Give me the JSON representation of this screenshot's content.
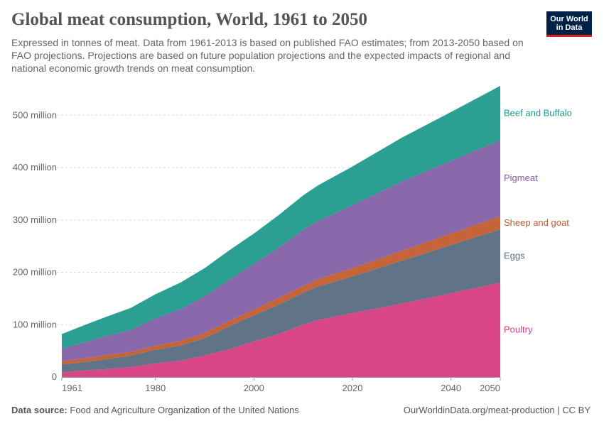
{
  "header": {
    "title": "Global meat consumption, World, 1961 to 2050",
    "subtitle": "Expressed in tonnes of meat. Data from 1961-2013 is based on published FAO estimates; from 2013-2050 based on FAO projections. Projections are based on future population projections and the expected impacts of regional and national economic growth trends on meat consumption.",
    "logo_line1": "Our World",
    "logo_line2": "in Data"
  },
  "footer": {
    "source_label": "Data source:",
    "source_text": "Food and Agriculture Organization of the United Nations",
    "url": "OurWorldinData.org/meat-production | CC BY"
  },
  "chart_data": {
    "type": "area",
    "stacked": true,
    "title": "Global meat consumption, World, 1961 to 2050",
    "xlabel": "",
    "ylabel": "",
    "x": [
      1961,
      1965,
      1970,
      1975,
      1980,
      1985,
      1990,
      1995,
      2000,
      2005,
      2010,
      2013,
      2020,
      2030,
      2040,
      2050
    ],
    "xlim": [
      1961,
      2050
    ],
    "ylim": [
      0,
      560
    ],
    "x_ticks": [
      1961,
      1980,
      2000,
      2020,
      2040,
      2050
    ],
    "y_ticks": [
      0,
      100,
      200,
      300,
      400,
      500
    ],
    "y_tick_labels": [
      "0",
      "100 million",
      "200 million",
      "300 million",
      "400 million",
      "500 million"
    ],
    "unit": "million tonnes",
    "legend_placement": "right of areas",
    "series": [
      {
        "name": "Poultry",
        "color": "#d73c82",
        "values": [
          9,
          12,
          15,
          19,
          26,
          31,
          41,
          53,
          68,
          82,
          100,
          109,
          122,
          140,
          160,
          180
        ]
      },
      {
        "name": "Eggs",
        "color": "#596b81",
        "values": [
          15,
          16,
          19,
          22,
          26,
          29,
          33,
          44,
          50,
          56,
          61,
          64,
          70,
          82,
          92,
          102
        ]
      },
      {
        "name": "Sheep and goat",
        "color": "#c25b2e",
        "values": [
          6,
          7,
          8,
          7,
          8,
          9,
          10,
          10,
          11,
          13,
          13,
          14,
          16,
          19,
          22,
          25
        ]
      },
      {
        "name": "Pigmeat",
        "color": "#835fa7",
        "values": [
          24,
          30,
          36,
          42,
          52,
          60,
          70,
          79,
          87,
          96,
          107,
          111,
          120,
          132,
          139,
          145
        ]
      },
      {
        "name": "Beef and Buffalo",
        "color": "#1f9a8c",
        "values": [
          28,
          32,
          37,
          42,
          46,
          51,
          54,
          56,
          58,
          62,
          66,
          68,
          74,
          84,
          93,
          104
        ]
      }
    ]
  }
}
